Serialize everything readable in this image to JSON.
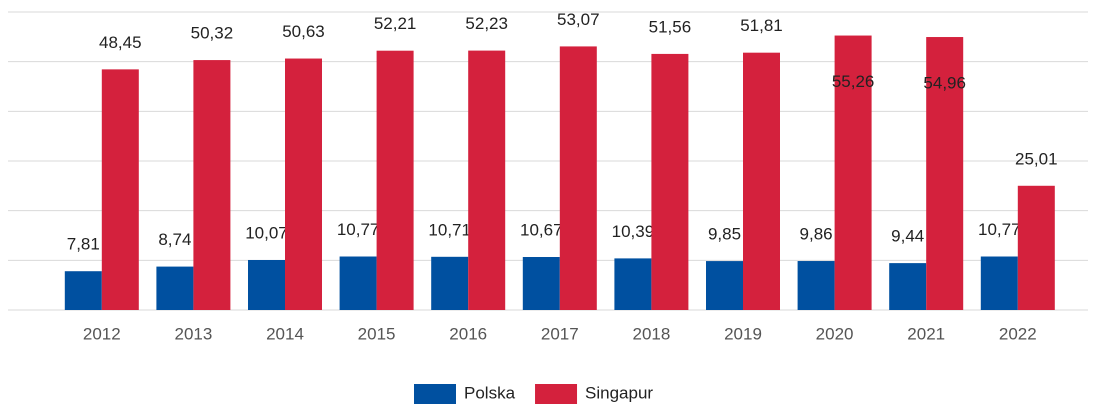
{
  "chart_data": {
    "type": "bar",
    "categories": [
      "2012",
      "2013",
      "2014",
      "2015",
      "2016",
      "2017",
      "2018",
      "2019",
      "2020",
      "2021",
      "2022"
    ],
    "series": [
      {
        "name": "Polska",
        "color": "#0050a0",
        "values": [
          7.81,
          8.74,
          10.07,
          10.77,
          10.71,
          10.67,
          10.39,
          9.85,
          9.86,
          9.44,
          10.77
        ],
        "value_labels": [
          "7,81",
          "8,74",
          "10,07",
          "10,77",
          "10,71",
          "10,67",
          "10,39",
          "9,85",
          "9,86",
          "9,44",
          "10,77"
        ]
      },
      {
        "name": "Singapur",
        "color": "#d4213d",
        "values": [
          48.45,
          50.32,
          50.63,
          52.21,
          52.23,
          53.07,
          51.56,
          51.81,
          55.26,
          54.96,
          25.01
        ],
        "value_labels": [
          "48,45",
          "50,32",
          "50,63",
          "52,21",
          "52,23",
          "53,07",
          "51,56",
          "51,81",
          "55,26",
          "54,96",
          "25,01"
        ]
      }
    ],
    "ylim": [
      0,
      60
    ],
    "yticks": [
      0,
      10,
      20,
      30,
      40,
      50,
      60
    ],
    "grid": true,
    "legend": "bottom"
  }
}
